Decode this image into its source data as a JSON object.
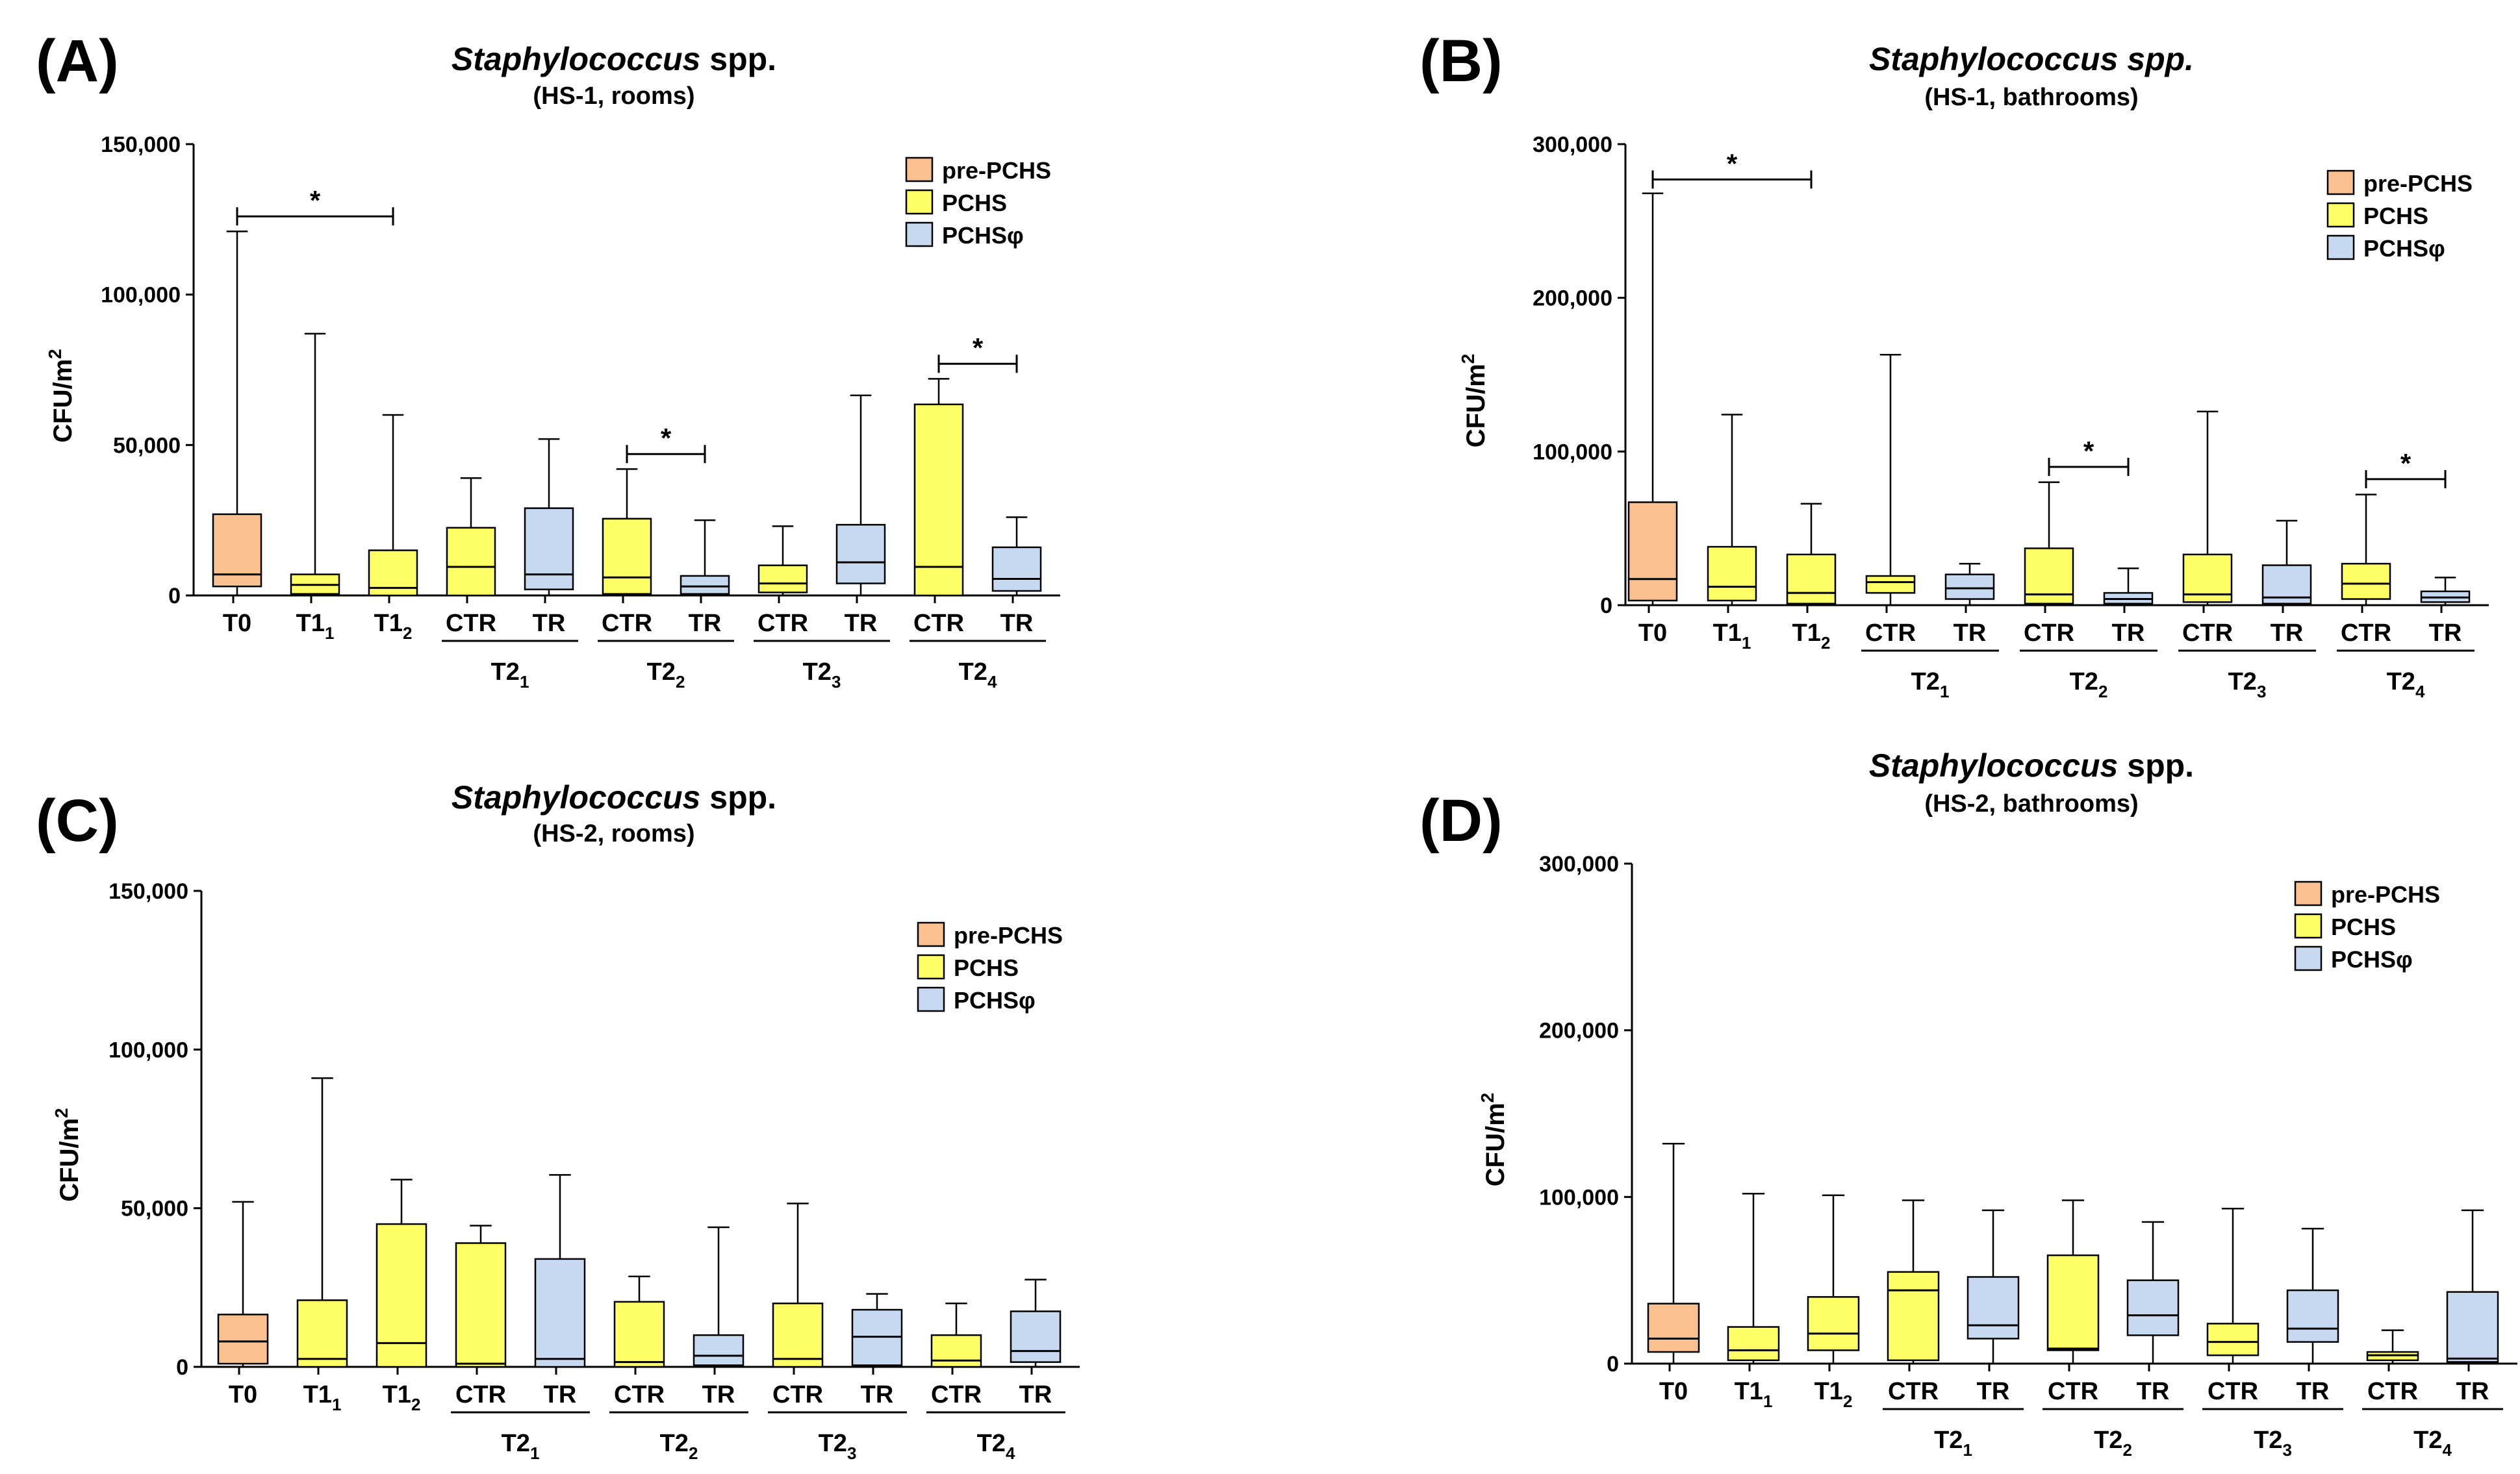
{
  "colors": {
    "pre_PCHS": "#FAC090",
    "PCHS": "#FFFF66",
    "PCHS_phi": "#C6D9F1"
  },
  "legend": [
    {
      "key": "pre_PCHS",
      "label": "pre-PCHS"
    },
    {
      "key": "PCHS",
      "label": "PCHS"
    },
    {
      "key": "PCHS_phi",
      "label": "PCHSφ"
    }
  ],
  "chart_data": [
    {
      "panel": "(A)",
      "type": "box",
      "title_italic": "Staphylococcus",
      "title_rest": " spp.",
      "subtitle": "(HS-1, rooms)",
      "ylabel": "CFU/m",
      "ylabel_sup": "2",
      "ylim": [
        0,
        150000
      ],
      "yticks": [
        0,
        50000,
        100000,
        150000
      ],
      "ytick_labels": [
        "0",
        "50,000",
        "100,000",
        "150,000"
      ],
      "boxes": [
        {
          "label": "T0",
          "sub": "",
          "group": "pre_PCHS",
          "min": 0,
          "q1": 3000,
          "median": 7000,
          "q3": 27000,
          "max": 121000
        },
        {
          "label": "T1",
          "sub": "1",
          "group": "PCHS",
          "min": 0,
          "q1": 500,
          "median": 3500,
          "q3": 7000,
          "max": 87000
        },
        {
          "label": "T1",
          "sub": "2",
          "group": "PCHS",
          "min": 0,
          "q1": 0,
          "median": 2500,
          "q3": 15000,
          "max": 60000
        },
        {
          "label": "CTR",
          "sub": "",
          "group": "PCHS",
          "min": 0,
          "q1": 0,
          "median": 9500,
          "q3": 22500,
          "max": 39000
        },
        {
          "label": "TR",
          "sub": "",
          "group": "PCHS_phi",
          "min": 0,
          "q1": 2000,
          "median": 7000,
          "q3": 29000,
          "max": 52000
        },
        {
          "label": "CTR",
          "sub": "",
          "group": "PCHS",
          "min": 0,
          "q1": 500,
          "median": 6000,
          "q3": 25500,
          "max": 42000
        },
        {
          "label": "TR",
          "sub": "",
          "group": "PCHS_phi",
          "min": 0,
          "q1": 500,
          "median": 3000,
          "q3": 6500,
          "max": 25000
        },
        {
          "label": "CTR",
          "sub": "",
          "group": "PCHS",
          "min": 0,
          "q1": 1000,
          "median": 4000,
          "q3": 10000,
          "max": 23000
        },
        {
          "label": "TR",
          "sub": "",
          "group": "PCHS_phi",
          "min": 0,
          "q1": 4000,
          "median": 11000,
          "q3": 23500,
          "max": 66500
        },
        {
          "label": "CTR",
          "sub": "",
          "group": "PCHS",
          "min": 0,
          "q1": 0,
          "median": 9500,
          "q3": 63500,
          "max": 72000
        },
        {
          "label": "TR",
          "sub": "",
          "group": "PCHS_phi",
          "min": 0,
          "q1": 1500,
          "median": 5500,
          "q3": 16000,
          "max": 26000
        }
      ],
      "groups": [
        {
          "label": "T2",
          "sub": "1",
          "from": 3,
          "to": 4
        },
        {
          "label": "T2",
          "sub": "2",
          "from": 5,
          "to": 6
        },
        {
          "label": "T2",
          "sub": "3",
          "from": 7,
          "to": 8
        },
        {
          "label": "T2",
          "sub": "4",
          "from": 9,
          "to": 10
        }
      ],
      "significance": [
        {
          "from": 0,
          "to": 2,
          "y": 126000,
          "label": "*"
        },
        {
          "from": 5,
          "to": 6,
          "y": 47000,
          "label": "*"
        },
        {
          "from": 9,
          "to": 10,
          "y": 77000,
          "label": "*"
        }
      ]
    },
    {
      "panel": "(B)",
      "type": "box",
      "title_italic": "Staphylococcus spp.",
      "title_rest": "",
      "subtitle": "(HS-1, bathrooms)",
      "ylabel": "CFU/m",
      "ylabel_sup": "2",
      "ylim": [
        0,
        300000
      ],
      "yticks": [
        0,
        100000,
        200000,
        300000
      ],
      "ytick_labels": [
        "0",
        "100,000",
        "200,000",
        "300,000"
      ],
      "boxes": [
        {
          "label": "T0",
          "sub": "",
          "group": "pre_PCHS",
          "min": 0,
          "q1": 3000,
          "median": 17000,
          "q3": 67000,
          "max": 268000
        },
        {
          "label": "T1",
          "sub": "1",
          "group": "PCHS",
          "min": 0,
          "q1": 3000,
          "median": 12000,
          "q3": 38000,
          "max": 124000
        },
        {
          "label": "T1",
          "sub": "2",
          "group": "PCHS",
          "min": 0,
          "q1": 1000,
          "median": 8000,
          "q3": 33000,
          "max": 66000
        },
        {
          "label": "CTR",
          "sub": "",
          "group": "PCHS",
          "min": 0,
          "q1": 8000,
          "median": 15000,
          "q3": 19000,
          "max": 163000
        },
        {
          "label": "TR",
          "sub": "",
          "group": "PCHS_phi",
          "min": 0,
          "q1": 4000,
          "median": 11000,
          "q3": 20000,
          "max": 27000
        },
        {
          "label": "CTR",
          "sub": "",
          "group": "PCHS",
          "min": 0,
          "q1": 1000,
          "median": 7000,
          "q3": 37000,
          "max": 80000
        },
        {
          "label": "TR",
          "sub": "",
          "group": "PCHS_phi",
          "min": 0,
          "q1": 1000,
          "median": 4000,
          "q3": 8000,
          "max": 24000
        },
        {
          "label": "CTR",
          "sub": "",
          "group": "PCHS",
          "min": 0,
          "q1": 2000,
          "median": 7000,
          "q3": 33000,
          "max": 126000
        },
        {
          "label": "TR",
          "sub": "",
          "group": "PCHS_phi",
          "min": 0,
          "q1": 1000,
          "median": 5000,
          "q3": 26000,
          "max": 55000
        },
        {
          "label": "CTR",
          "sub": "",
          "group": "PCHS",
          "min": 0,
          "q1": 4000,
          "median": 14000,
          "q3": 27000,
          "max": 72000
        },
        {
          "label": "TR",
          "sub": "",
          "group": "PCHS_phi",
          "min": 0,
          "q1": 2000,
          "median": 5000,
          "q3": 9000,
          "max": 18000
        }
      ],
      "groups": [
        {
          "label": "T2",
          "sub": "1",
          "from": 3,
          "to": 4
        },
        {
          "label": "T2",
          "sub": "2",
          "from": 5,
          "to": 6
        },
        {
          "label": "T2",
          "sub": "3",
          "from": 7,
          "to": 8
        },
        {
          "label": "T2",
          "sub": "4",
          "from": 9,
          "to": 10
        }
      ],
      "significance": [
        {
          "from": 0,
          "to": 2,
          "y": 277000,
          "label": "*"
        },
        {
          "from": 5,
          "to": 6,
          "y": 90000,
          "label": "*"
        },
        {
          "from": 9,
          "to": 10,
          "y": 82000,
          "label": "*"
        }
      ]
    },
    {
      "panel": "(C)",
      "type": "box",
      "title_italic": "Staphylococcus",
      "title_rest": " spp.",
      "subtitle": "(HS-2, rooms)",
      "ylabel": "CFU/m",
      "ylabel_sup": "2",
      "ylim": [
        0,
        150000
      ],
      "yticks": [
        0,
        50000,
        100000,
        150000
      ],
      "ytick_labels": [
        "0",
        "50,000",
        "100,000",
        "150,000"
      ],
      "boxes": [
        {
          "label": "T0",
          "sub": "",
          "group": "pre_PCHS",
          "min": 0,
          "q1": 1000,
          "median": 8000,
          "q3": 16500,
          "max": 52000
        },
        {
          "label": "T1",
          "sub": "1",
          "group": "PCHS",
          "min": 0,
          "q1": 0,
          "median": 2500,
          "q3": 21000,
          "max": 91000
        },
        {
          "label": "T1",
          "sub": "2",
          "group": "PCHS",
          "min": 0,
          "q1": 0,
          "median": 7500,
          "q3": 45000,
          "max": 59000
        },
        {
          "label": "CTR",
          "sub": "",
          "group": "PCHS",
          "min": 0,
          "q1": 0,
          "median": 1000,
          "q3": 39000,
          "max": 44500
        },
        {
          "label": "TR",
          "sub": "",
          "group": "PCHS_phi",
          "min": 0,
          "q1": 0,
          "median": 2500,
          "q3": 34000,
          "max": 60500
        },
        {
          "label": "CTR",
          "sub": "",
          "group": "PCHS",
          "min": 0,
          "q1": 0,
          "median": 1500,
          "q3": 20500,
          "max": 28500
        },
        {
          "label": "TR",
          "sub": "",
          "group": "PCHS_phi",
          "min": 0,
          "q1": 500,
          "median": 3500,
          "q3": 10000,
          "max": 44000
        },
        {
          "label": "CTR",
          "sub": "",
          "group": "PCHS",
          "min": 0,
          "q1": 0,
          "median": 2500,
          "q3": 20000,
          "max": 51500
        },
        {
          "label": "TR",
          "sub": "",
          "group": "PCHS_phi",
          "min": 0,
          "q1": 500,
          "median": 9500,
          "q3": 18000,
          "max": 23000
        },
        {
          "label": "CTR",
          "sub": "",
          "group": "PCHS",
          "min": 0,
          "q1": 0,
          "median": 2000,
          "q3": 10000,
          "max": 20000
        },
        {
          "label": "TR",
          "sub": "",
          "group": "PCHS_phi",
          "min": 0,
          "q1": 1500,
          "median": 5000,
          "q3": 17500,
          "max": 27500
        }
      ],
      "groups": [
        {
          "label": "T2",
          "sub": "1",
          "from": 3,
          "to": 4
        },
        {
          "label": "T2",
          "sub": "2",
          "from": 5,
          "to": 6
        },
        {
          "label": "T2",
          "sub": "3",
          "from": 7,
          "to": 8
        },
        {
          "label": "T2",
          "sub": "4",
          "from": 9,
          "to": 10
        }
      ],
      "significance": []
    },
    {
      "panel": "(D)",
      "type": "box",
      "title_italic": "Staphylococcus",
      "title_rest": " spp.",
      "subtitle": "(HS-2, bathrooms)",
      "ylabel": "CFU/m",
      "ylabel_sup": "2",
      "ylim": [
        0,
        300000
      ],
      "yticks": [
        0,
        100000,
        200000,
        300000
      ],
      "ytick_labels": [
        "0",
        "100,000",
        "200,000",
        "300,000"
      ],
      "boxes": [
        {
          "label": "T0",
          "sub": "",
          "group": "pre_PCHS",
          "min": 0,
          "q1": 7000,
          "median": 15000,
          "q3": 36000,
          "max": 132000
        },
        {
          "label": "T1",
          "sub": "1",
          "group": "PCHS",
          "min": 0,
          "q1": 2000,
          "median": 8000,
          "q3": 22000,
          "max": 102000
        },
        {
          "label": "T1",
          "sub": "2",
          "group": "PCHS",
          "min": 0,
          "q1": 8000,
          "median": 18000,
          "q3": 40000,
          "max": 101000
        },
        {
          "label": "CTR",
          "sub": "",
          "group": "PCHS",
          "min": 0,
          "q1": 2000,
          "median": 44000,
          "q3": 55000,
          "max": 98000
        },
        {
          "label": "TR",
          "sub": "",
          "group": "PCHS_phi",
          "min": 0,
          "q1": 15000,
          "median": 23000,
          "q3": 52000,
          "max": 92000
        },
        {
          "label": "CTR",
          "sub": "",
          "group": "PCHS",
          "min": 0,
          "q1": 8000,
          "median": 9000,
          "q3": 65000,
          "max": 98000
        },
        {
          "label": "TR",
          "sub": "",
          "group": "PCHS_phi",
          "min": 0,
          "q1": 17000,
          "median": 29000,
          "q3": 50000,
          "max": 85000
        },
        {
          "label": "CTR",
          "sub": "",
          "group": "PCHS",
          "min": 0,
          "q1": 5000,
          "median": 13000,
          "q3": 24000,
          "max": 93000
        },
        {
          "label": "TR",
          "sub": "",
          "group": "PCHS_phi",
          "min": 0,
          "q1": 13000,
          "median": 21000,
          "q3": 44000,
          "max": 81000
        },
        {
          "label": "CTR",
          "sub": "",
          "group": "PCHS",
          "min": 0,
          "q1": 2000,
          "median": 5000,
          "q3": 7000,
          "max": 20000
        },
        {
          "label": "TR",
          "sub": "",
          "group": "PCHS_phi",
          "min": 0,
          "q1": 1000,
          "median": 3000,
          "q3": 43000,
          "max": 92000
        }
      ],
      "groups": [
        {
          "label": "T2",
          "sub": "1",
          "from": 3,
          "to": 4
        },
        {
          "label": "T2",
          "sub": "2",
          "from": 5,
          "to": 6
        },
        {
          "label": "T2",
          "sub": "3",
          "from": 7,
          "to": 8
        },
        {
          "label": "T2",
          "sub": "4",
          "from": 9,
          "to": 10
        }
      ],
      "significance": []
    }
  ]
}
